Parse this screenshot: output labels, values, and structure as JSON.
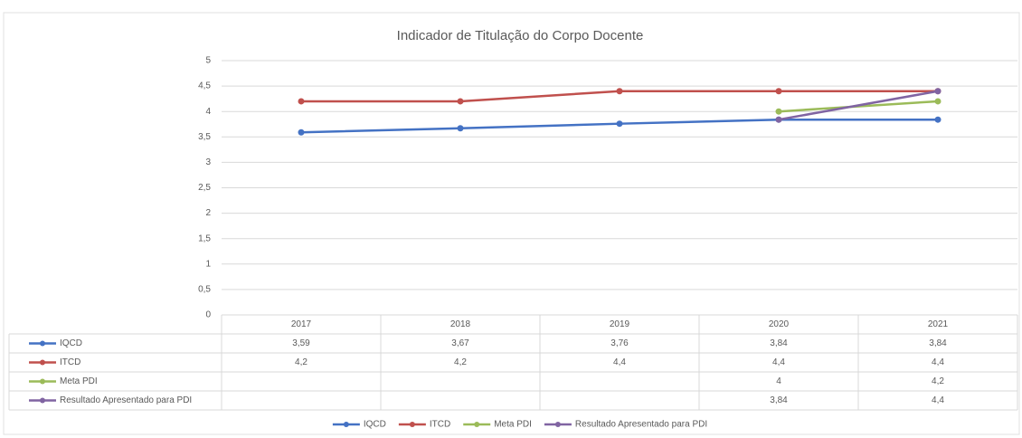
{
  "chart_data": {
    "type": "line",
    "title": "Indicador de Titulação do Corpo Docente",
    "categories": [
      "2017",
      "2018",
      "2019",
      "2020",
      "2021"
    ],
    "series": [
      {
        "name": "IQCD",
        "color": "#4472c4",
        "values": [
          3.59,
          3.67,
          3.76,
          3.84,
          3.84
        ],
        "value_labels": [
          "3,59",
          "3,67",
          "3,76",
          "3,84",
          "3,84"
        ]
      },
      {
        "name": "ITCD",
        "color": "#c0504d",
        "values": [
          4.2,
          4.2,
          4.4,
          4.4,
          4.4
        ],
        "value_labels": [
          "4,2",
          "4,2",
          "4,4",
          "4,4",
          "4,4"
        ]
      },
      {
        "name": "Meta PDI",
        "color": "#9bbb59",
        "values": [
          null,
          null,
          null,
          4,
          4.2
        ],
        "value_labels": [
          null,
          null,
          null,
          "4",
          "4,2"
        ]
      },
      {
        "name": "Resultado Apresentado para PDI",
        "color": "#8064a2",
        "values": [
          null,
          null,
          null,
          3.84,
          4.4
        ],
        "value_labels": [
          null,
          null,
          null,
          "3,84",
          "4,4"
        ]
      }
    ],
    "ylim": [
      0,
      5
    ],
    "yticks": [
      0,
      {
        "value": 0.5,
        "label": "0,5"
      },
      1,
      {
        "value": 1.5,
        "label": "1,5"
      },
      2,
      {
        "value": 2.5,
        "label": "2,5"
      },
      3,
      {
        "value": 3.5,
        "label": "3,5"
      },
      4,
      {
        "value": 4.5,
        "label": "4,5"
      },
      5
    ],
    "grid": true,
    "legend": "bottom"
  }
}
